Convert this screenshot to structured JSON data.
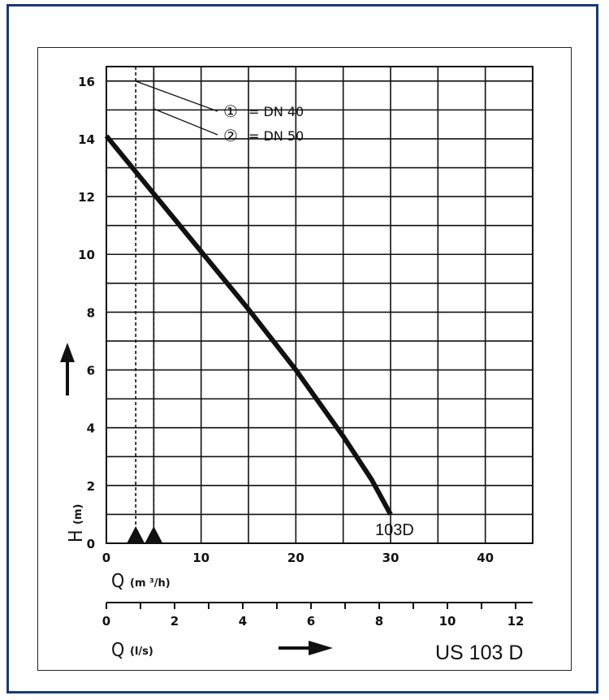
{
  "chart_data": {
    "type": "line",
    "title": "",
    "model_label": "US 103 D",
    "series": [
      {
        "name": "103D",
        "x": [
          0,
          5,
          10,
          15,
          20,
          25,
          28,
          30
        ],
        "y": [
          14.1,
          12.1,
          10.1,
          8.1,
          6.0,
          3.7,
          2.2,
          1.0
        ]
      }
    ],
    "y_axis": {
      "label": "H",
      "unit": "(m)",
      "range": [
        0,
        16.5
      ],
      "ticks": [
        "0",
        "2",
        "4",
        "6",
        "8",
        "10",
        "12",
        "14",
        "16"
      ],
      "tick_values": [
        0,
        2,
        4,
        6,
        8,
        10,
        12,
        14,
        16
      ],
      "grid_step": 1
    },
    "x_axis_primary": {
      "label": "Q",
      "unit": "(m ³/h)",
      "range": [
        0,
        45
      ],
      "ticks": [
        "0",
        "10",
        "20",
        "30",
        "40"
      ],
      "tick_values": [
        0,
        10,
        20,
        30,
        40
      ],
      "grid_step": 5
    },
    "x_axis_secondary": {
      "label": "Q",
      "unit": "(l/s)",
      "range": [
        0,
        12.5
      ],
      "ticks": [
        "0",
        "2",
        "4",
        "6",
        "8",
        "10",
        "12"
      ],
      "tick_values": [
        0,
        2,
        4,
        6,
        8,
        10,
        12
      ]
    },
    "reference_lines": [
      {
        "marker": "①",
        "text": "= DN 40",
        "x": 3.1
      },
      {
        "marker": "②",
        "text": "= DN 50",
        "x": 5.0
      }
    ],
    "grid": true
  }
}
